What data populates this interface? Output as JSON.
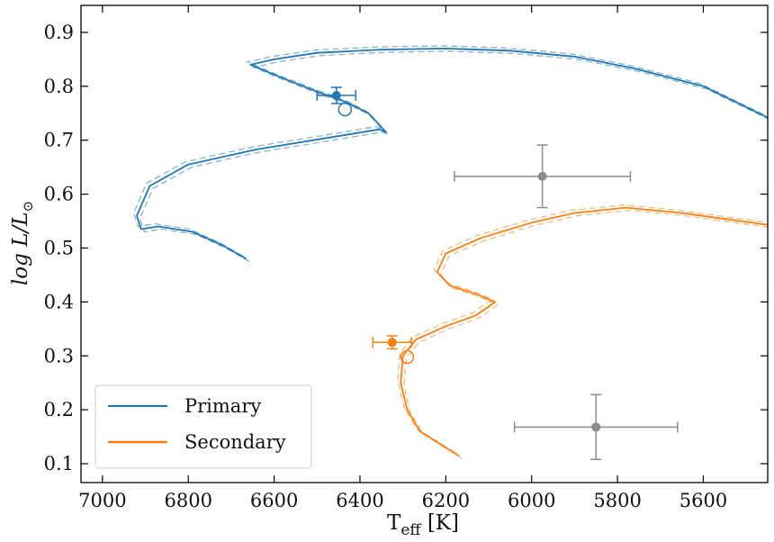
{
  "chart_data": {
    "type": "line",
    "xlabel_main": "T",
    "xlabel_sub": "eff",
    "xlabel_unit": " [K]",
    "ylabel_main": "log L/L",
    "ylabel_sub": "⊙",
    "xlim": [
      7050,
      5450
    ],
    "ylim": [
      0.065,
      0.95
    ],
    "x_inverted": true,
    "xticks": [
      7000,
      6800,
      6600,
      6400,
      6200,
      6000,
      5800,
      5600
    ],
    "yticks": [
      0.1,
      0.2,
      0.3,
      0.4,
      0.5,
      0.6,
      0.7,
      0.8,
      0.9
    ],
    "grid": false,
    "legend_position": "lower-left",
    "series": [
      {
        "name": "Primary",
        "color": "#1f77b4",
        "track": [
          [
            6665,
            0.48
          ],
          [
            6720,
            0.505
          ],
          [
            6790,
            0.53
          ],
          [
            6870,
            0.54
          ],
          [
            6910,
            0.535
          ],
          [
            6920,
            0.56
          ],
          [
            6890,
            0.615
          ],
          [
            6800,
            0.655
          ],
          [
            6640,
            0.683
          ],
          [
            6470,
            0.705
          ],
          [
            6355,
            0.72
          ],
          [
            6340,
            0.715
          ],
          [
            6380,
            0.75
          ],
          [
            6430,
            0.77
          ],
          [
            6500,
            0.79
          ],
          [
            6580,
            0.815
          ],
          [
            6655,
            0.84
          ],
          [
            6600,
            0.85
          ],
          [
            6500,
            0.862
          ],
          [
            6350,
            0.868
          ],
          [
            6200,
            0.87
          ],
          [
            6050,
            0.866
          ],
          [
            5900,
            0.855
          ],
          [
            5760,
            0.833
          ],
          [
            5600,
            0.8
          ],
          [
            5450,
            0.742
          ]
        ],
        "observed": {
          "teff": 6455,
          "teff_err": 45,
          "logL": 0.783,
          "logL_err": 0.015
        },
        "model": {
          "teff": 6435,
          "logL": 0.757
        }
      },
      {
        "name": "Secondary",
        "color": "#ff7f0e",
        "track": [
          [
            6170,
            0.115
          ],
          [
            6210,
            0.135
          ],
          [
            6260,
            0.16
          ],
          [
            6290,
            0.2
          ],
          [
            6305,
            0.25
          ],
          [
            6300,
            0.3
          ],
          [
            6270,
            0.33
          ],
          [
            6200,
            0.355
          ],
          [
            6130,
            0.375
          ],
          [
            6085,
            0.4
          ],
          [
            6130,
            0.415
          ],
          [
            6190,
            0.43
          ],
          [
            6220,
            0.455
          ],
          [
            6200,
            0.49
          ],
          [
            6120,
            0.518
          ],
          [
            6000,
            0.547
          ],
          [
            5900,
            0.565
          ],
          [
            5780,
            0.575
          ],
          [
            5650,
            0.565
          ],
          [
            5450,
            0.543
          ]
        ],
        "observed": {
          "teff": 6325,
          "teff_err": 45,
          "logL": 0.325,
          "logL_err": 0.012
        },
        "model": {
          "teff": 6290,
          "logL": 0.298
        }
      }
    ],
    "reference_points": [
      {
        "color": "#8c8c8c",
        "teff": 5975,
        "teff_err_low": 205,
        "teff_err_high": 205,
        "logL": 0.633,
        "logL_err": 0.058
      },
      {
        "color": "#8c8c8c",
        "teff": 5850,
        "teff_err_low": 190,
        "teff_err_high": 190,
        "logL": 0.168,
        "logL_err": 0.06
      }
    ]
  }
}
